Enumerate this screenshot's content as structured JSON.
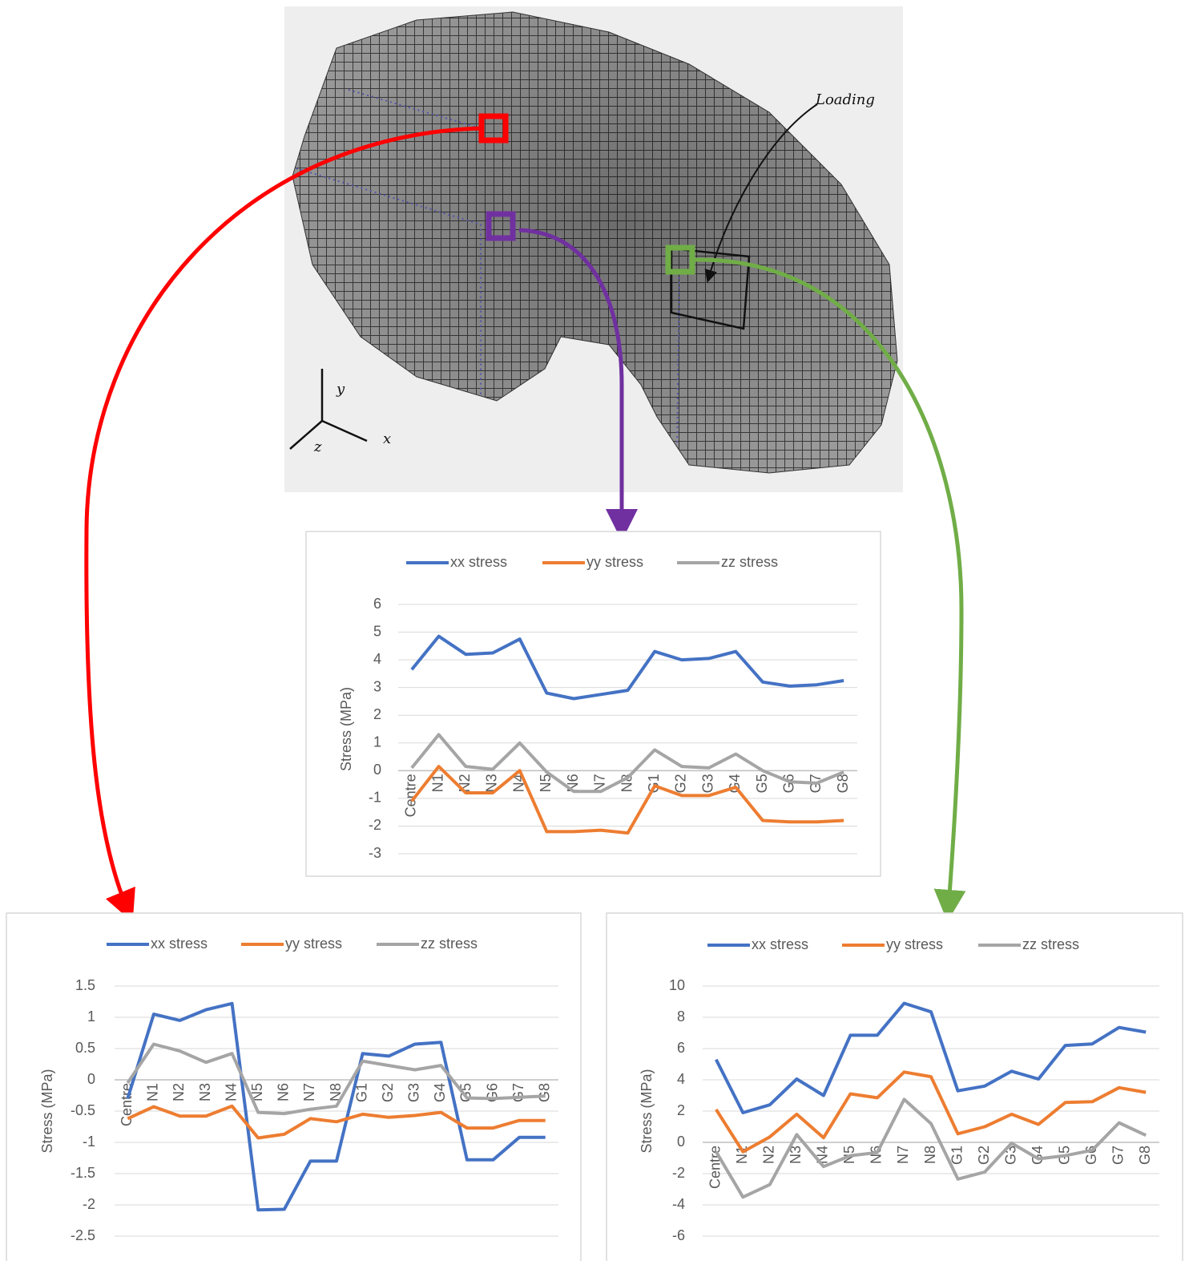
{
  "figure": {
    "annotation": "Loading",
    "axis_y": "y",
    "axis_x": "x",
    "axis_z": "z"
  },
  "chart_data": [
    {
      "type": "line",
      "y_label": "Stress (MPa)",
      "categories": [
        "Centre",
        "N1",
        "N2",
        "N3",
        "N4",
        "N5",
        "N6",
        "N7",
        "N8",
        "G1",
        "G2",
        "G3",
        "G4",
        "G5",
        "G6",
        "G7",
        "G8"
      ],
      "series": [
        {
          "name": "xx stress",
          "color": "#4472c4",
          "values": [
            3.65,
            4.85,
            4.2,
            4.25,
            4.75,
            2.8,
            2.6,
            2.75,
            2.9,
            4.3,
            4.0,
            4.05,
            4.3,
            3.2,
            3.05,
            3.1,
            3.25
          ]
        },
        {
          "name": "yy stress",
          "color": "#ed7d31",
          "values": [
            -1.1,
            0.15,
            -0.8,
            -0.8,
            0.0,
            -2.2,
            -2.2,
            -2.15,
            -2.25,
            -0.55,
            -0.9,
            -0.9,
            -0.6,
            -1.8,
            -1.85,
            -1.85,
            -1.8
          ]
        },
        {
          "name": "zz stress",
          "color": "#a5a5a5",
          "values": [
            0.1,
            1.3,
            0.15,
            0.05,
            1.0,
            -0.05,
            -0.75,
            -0.75,
            -0.25,
            0.75,
            0.15,
            0.1,
            0.6,
            0.0,
            -0.4,
            -0.45,
            -0.05
          ]
        }
      ],
      "ylim": [
        -3,
        6
      ],
      "yticks": [
        -3,
        -2,
        -1,
        0,
        1,
        2,
        3,
        4,
        5,
        6
      ],
      "grid": true
    },
    {
      "type": "line",
      "y_label": "Stress (MPa)",
      "categories": [
        "Centre",
        "N1",
        "N2",
        "N3",
        "N4",
        "N5",
        "N6",
        "N7",
        "N8",
        "G1",
        "G2",
        "G3",
        "G4",
        "G5",
        "G6",
        "G7",
        "G8"
      ],
      "series": [
        {
          "name": "xx stress",
          "color": "#4472c4",
          "values": [
            -0.3,
            1.05,
            0.95,
            1.12,
            1.22,
            -2.08,
            -2.07,
            -1.3,
            -1.3,
            0.42,
            0.38,
            0.57,
            0.6,
            -1.28,
            -1.28,
            -0.92,
            -0.92
          ]
        },
        {
          "name": "yy stress",
          "color": "#ed7d31",
          "values": [
            -0.62,
            -0.43,
            -0.58,
            -0.58,
            -0.42,
            -0.93,
            -0.87,
            -0.62,
            -0.67,
            -0.55,
            -0.6,
            -0.57,
            -0.52,
            -0.77,
            -0.77,
            -0.65,
            -0.65
          ]
        },
        {
          "name": "zz stress",
          "color": "#a5a5a5",
          "values": [
            -0.05,
            0.57,
            0.46,
            0.28,
            0.42,
            -0.52,
            -0.54,
            -0.47,
            -0.42,
            0.3,
            0.23,
            0.16,
            0.23,
            -0.29,
            -0.3,
            -0.28,
            -0.26
          ]
        }
      ],
      "ylim": [
        -2.5,
        1.5
      ],
      "yticks": [
        -2.5,
        -2,
        -1.5,
        -1,
        -0.5,
        0,
        0.5,
        1,
        1.5
      ],
      "grid": true
    },
    {
      "type": "line",
      "y_label": "Stress (MPa)",
      "categories": [
        "Centre",
        "N1",
        "N2",
        "N3",
        "N4",
        "N5",
        "N6",
        "N7",
        "N8",
        "G1",
        "G2",
        "G3",
        "G4",
        "G5",
        "G6",
        "G7",
        "G8"
      ],
      "series": [
        {
          "name": "xx stress",
          "color": "#4472c4",
          "values": [
            5.3,
            1.9,
            2.4,
            4.05,
            3.0,
            6.85,
            6.85,
            8.9,
            8.35,
            3.3,
            3.6,
            4.55,
            4.05,
            6.2,
            6.3,
            7.35,
            7.05
          ]
        },
        {
          "name": "yy stress",
          "color": "#ed7d31",
          "values": [
            2.1,
            -0.6,
            0.35,
            1.8,
            0.3,
            3.1,
            2.85,
            4.5,
            4.2,
            0.55,
            1.0,
            1.8,
            1.15,
            2.55,
            2.6,
            3.5,
            3.2
          ]
        },
        {
          "name": "zz stress",
          "color": "#a5a5a5",
          "values": [
            -0.6,
            -3.5,
            -2.7,
            0.5,
            -1.55,
            -0.85,
            -0.65,
            2.75,
            1.2,
            -2.35,
            -1.9,
            -0.05,
            -1.05,
            -0.85,
            -0.5,
            1.25,
            0.45
          ]
        }
      ],
      "ylim": [
        -6,
        10
      ],
      "yticks": [
        -6,
        -4,
        -2,
        0,
        2,
        4,
        6,
        8,
        10
      ],
      "grid": true
    }
  ]
}
